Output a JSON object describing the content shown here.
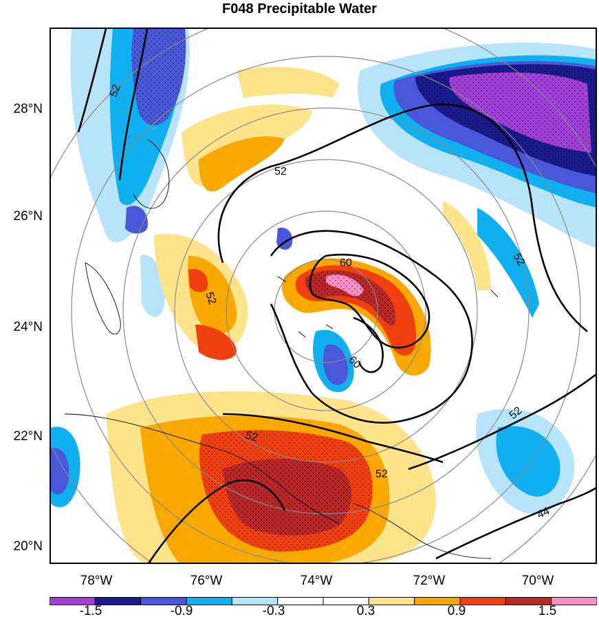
{
  "title": "F048 Precipitable Water",
  "lat_labels": [
    "28°N",
    "26°N",
    "24°N",
    "22°N",
    "20°N"
  ],
  "lon_labels": [
    "78°W",
    "76°W",
    "74°W",
    "72°W",
    "70°W"
  ],
  "colorbar": {
    "labels": [
      "-1.5",
      "-0.9",
      "-0.3",
      "0.3",
      "0.9",
      "1.5"
    ],
    "colors": [
      "#a040d8",
      "#1a1a8c",
      "#4858d8",
      "#10b0f0",
      "#b8e4fa",
      "#ffffff",
      "#ffffff",
      "#fde38a",
      "#f8a800",
      "#f04010",
      "#b82828",
      "#f890c8"
    ]
  },
  "contour_labels": [
    "52",
    "52",
    "52",
    "52",
    "52",
    "52",
    "52",
    "60",
    "60",
    "44"
  ],
  "map_extent": {
    "lon_min": -79.0,
    "lon_max": -69.0,
    "lat_min": 19.7,
    "lat_max": 29.6
  }
}
